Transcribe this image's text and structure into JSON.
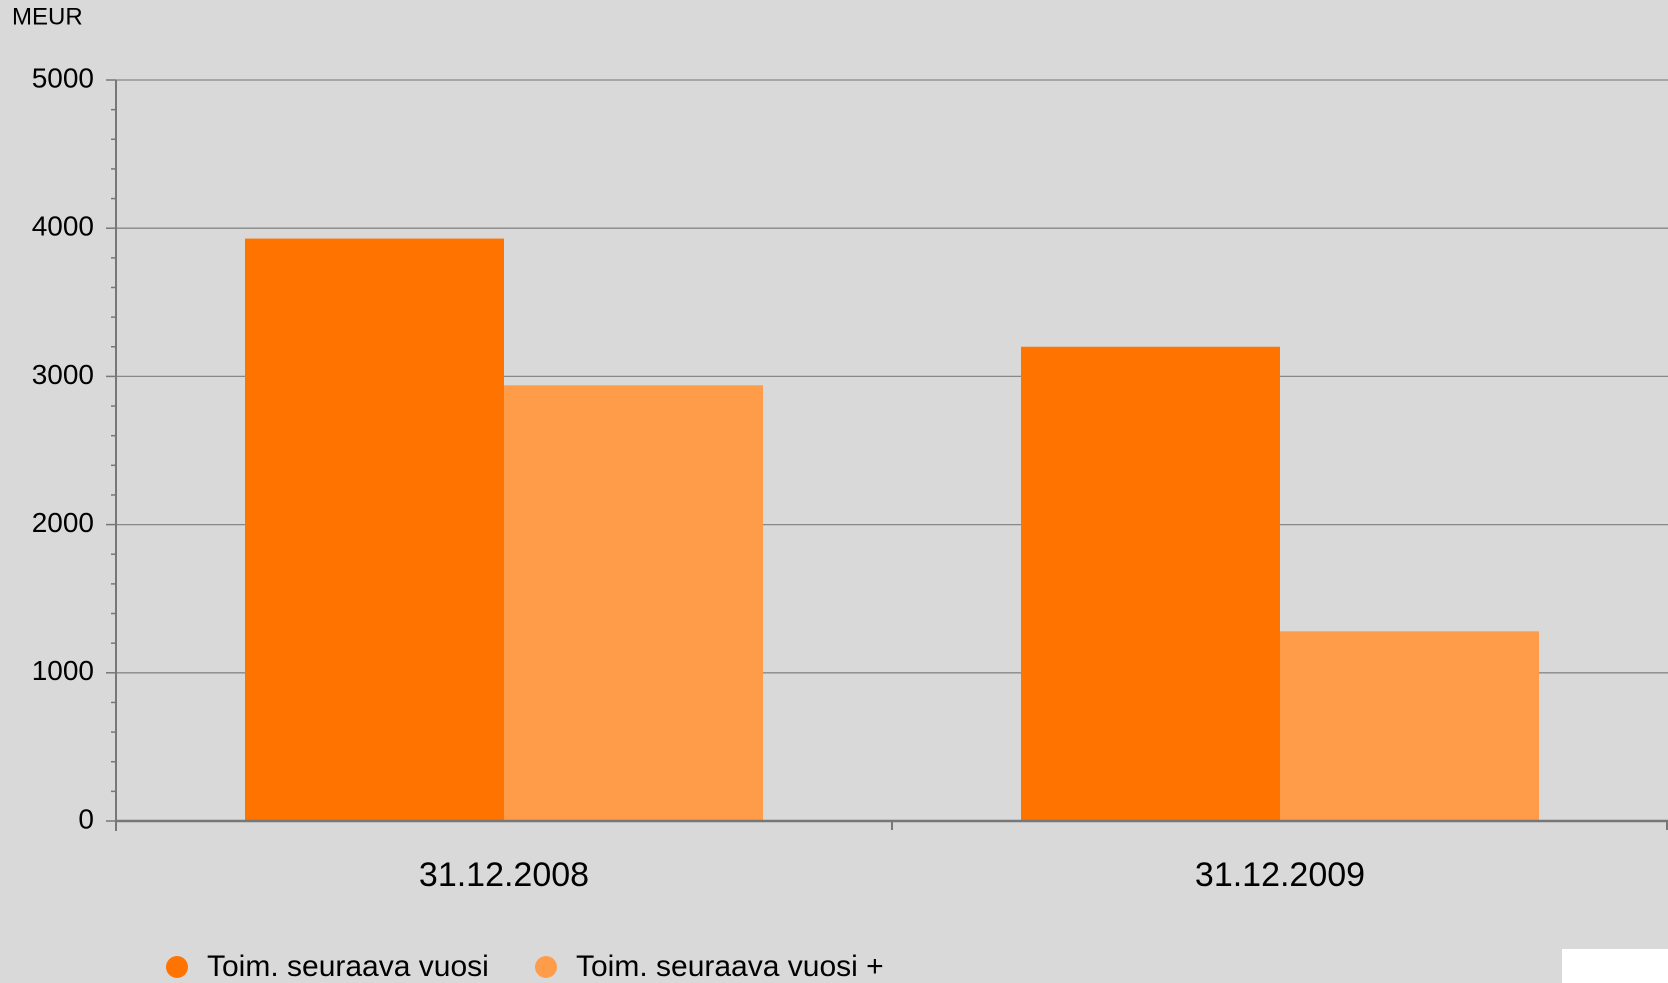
{
  "chart_data": {
    "type": "bar",
    "y_axis_label": "MEUR",
    "categories": [
      "31.12.2008",
      "31.12.2009"
    ],
    "series": [
      {
        "name": "Toim. seuraava vuosi",
        "color": "#ff7300",
        "values": [
          3930,
          3200
        ]
      },
      {
        "name": "Toim. seuraava vuosi +",
        "color": "#ff9c4a",
        "values": [
          2940,
          1280
        ]
      }
    ],
    "ylim": [
      0,
      5000
    ],
    "yticks": [
      0,
      1000,
      2000,
      3000,
      4000,
      5000
    ],
    "grid": true
  }
}
